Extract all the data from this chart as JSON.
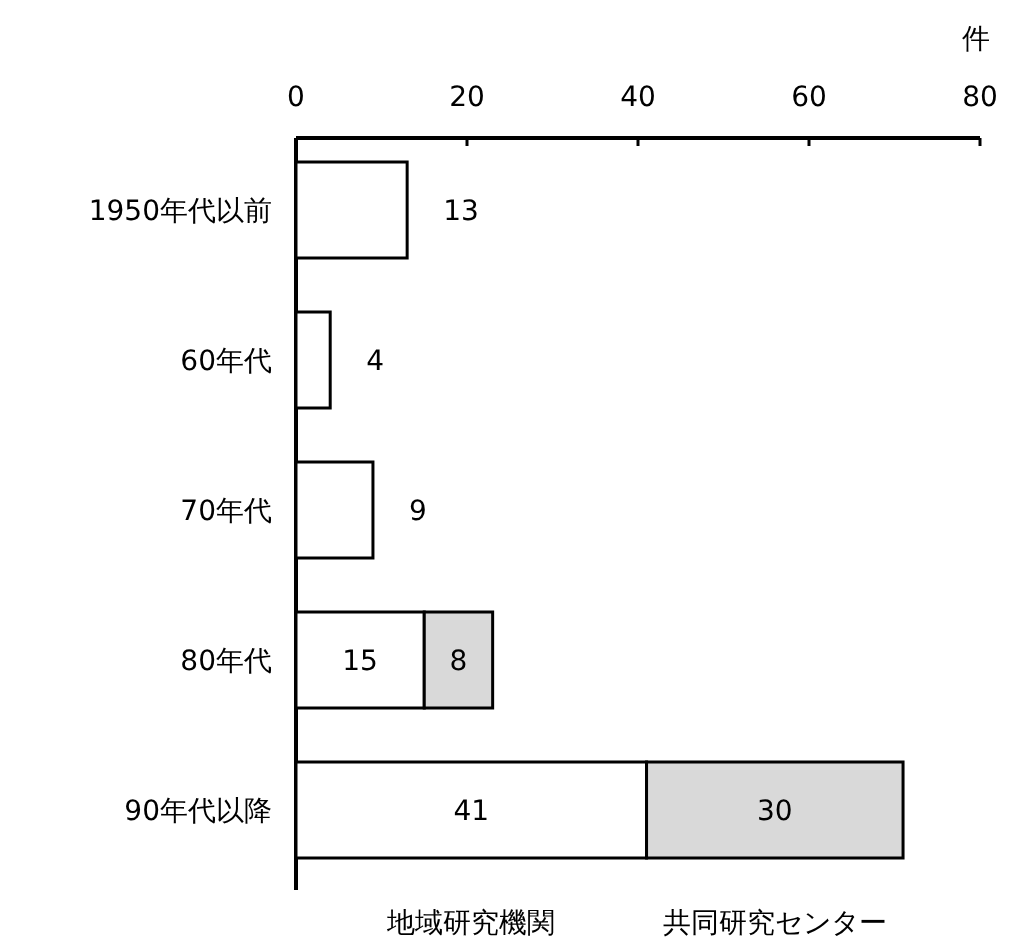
{
  "chart_data": {
    "type": "bar",
    "orientation": "horizontal",
    "stacked": true,
    "xlabel": "件",
    "categories": [
      "1950年代以前",
      "60年代",
      "70年代",
      "80年代",
      "90年代以降"
    ],
    "series": [
      {
        "name": "地域研究機関",
        "color": "#ffffff",
        "values": [
          13,
          4,
          9,
          15,
          41
        ]
      },
      {
        "name": "共同研究センター",
        "color": "#d9d9d9",
        "values": [
          null,
          null,
          null,
          8,
          30
        ]
      }
    ],
    "xlim": [
      0,
      80
    ],
    "xticks": [
      0,
      20,
      40,
      60,
      80
    ],
    "data_labels": true
  }
}
